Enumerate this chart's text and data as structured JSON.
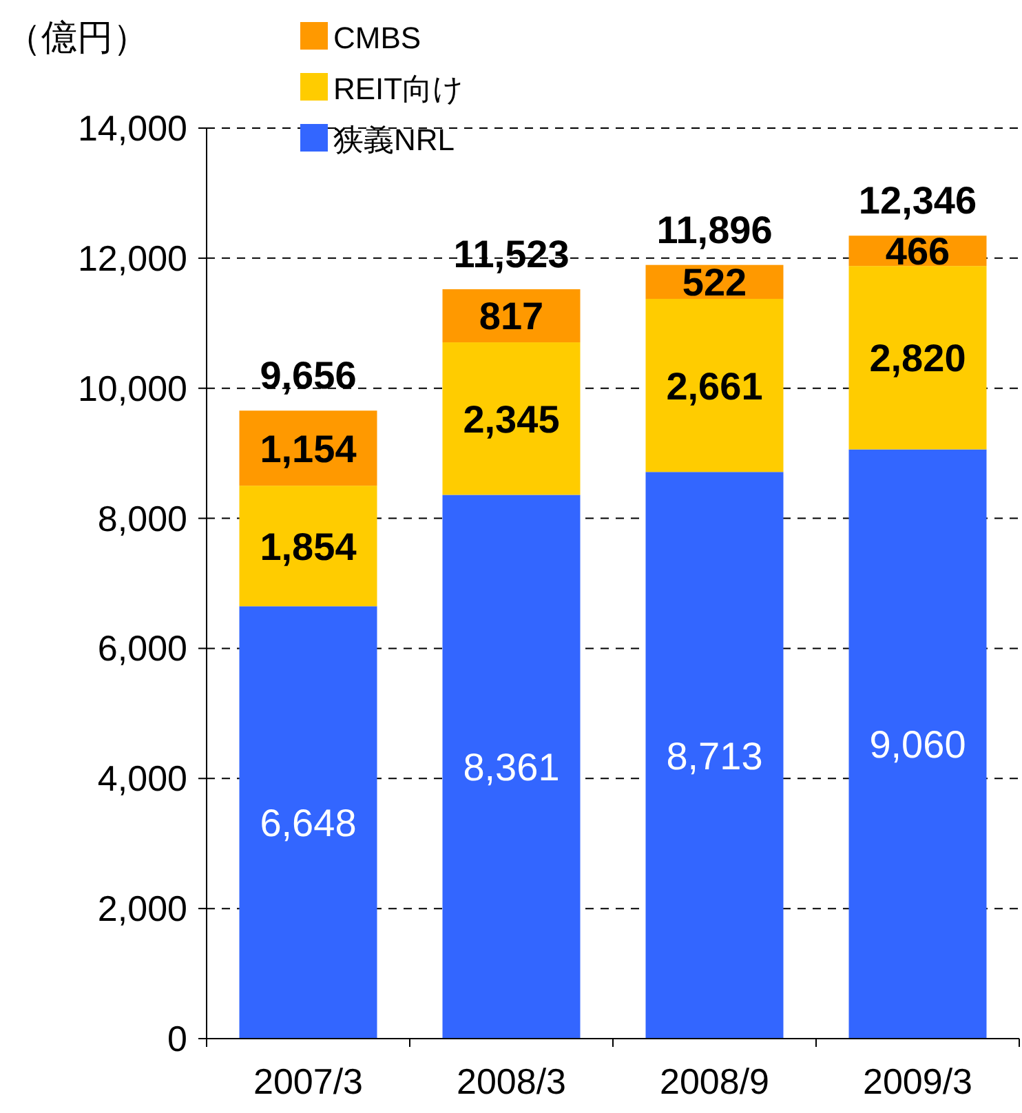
{
  "chart_data": {
    "type": "bar",
    "stacked": true,
    "ylabel": "（億円）",
    "categories": [
      "2007/3",
      "2008/3",
      "2008/9",
      "2009/3"
    ],
    "series": [
      {
        "name": "狭義NRL",
        "color": "#3366ff",
        "values": [
          6648,
          8361,
          8713,
          9060
        ],
        "value_labels": [
          "6,648",
          "8,361",
          "8,713",
          "9,060"
        ]
      },
      {
        "name": "REIT向け",
        "color": "#ffcc00",
        "values": [
          1854,
          2345,
          2661,
          2820
        ],
        "value_labels": [
          "1,854",
          "2,345",
          "2,661",
          "2,820"
        ]
      },
      {
        "name": "CMBS",
        "color": "#ff9900",
        "values": [
          1154,
          817,
          522,
          466
        ],
        "value_labels": [
          "1,154",
          "817",
          "522",
          "466"
        ]
      }
    ],
    "totals": [
      "9,656",
      "11,523",
      "11,896",
      "12,346"
    ],
    "ylim": [
      0,
      14000
    ],
    "yticks": [
      {
        "value": 0,
        "label": "0"
      },
      {
        "value": 2000,
        "label": "2,000"
      },
      {
        "value": 4000,
        "label": "4,000"
      },
      {
        "value": 6000,
        "label": "6,000"
      },
      {
        "value": 8000,
        "label": "8,000"
      },
      {
        "value": 10000,
        "label": "10,000"
      },
      {
        "value": 12000,
        "label": "12,000"
      },
      {
        "value": 14000,
        "label": "14,000"
      }
    ],
    "grid": "y",
    "legend": "top left"
  }
}
